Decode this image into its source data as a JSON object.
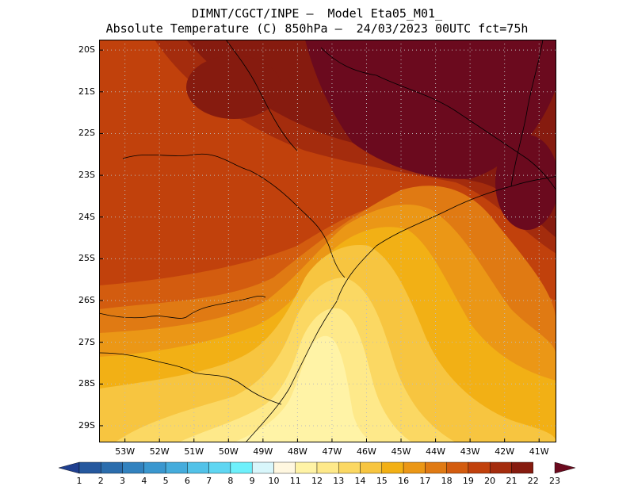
{
  "header": {
    "title_line1": "DIMNT/CGCT/INPE –  Model Eta05_M01_",
    "title_line2": "Absolute Temperature (C) 850hPa –  24/03/2023 00UTC fct=75h"
  },
  "map": {
    "lon_range": [
      -53.75,
      -40.5
    ],
    "lat_range": [
      -29.4,
      -19.75
    ],
    "lat_ticks": [
      "20S",
      "21S",
      "22S",
      "23S",
      "24S",
      "25S",
      "26S",
      "27S",
      "28S",
      "29S"
    ],
    "lat_values": [
      -20,
      -21,
      -22,
      -23,
      -24,
      -25,
      -26,
      -27,
      -28,
      -29
    ],
    "lon_ticks": [
      "53W",
      "52W",
      "51W",
      "50W",
      "49W",
      "48W",
      "47W",
      "46W",
      "45W",
      "44W",
      "43W",
      "42W",
      "41W"
    ],
    "lon_values": [
      -53,
      -52,
      -51,
      -50,
      -49,
      -48,
      -47,
      -46,
      -45,
      -44,
      -43,
      -42,
      -41
    ],
    "grid": true,
    "grid_style": "dotted"
  },
  "colorbar": {
    "labels": [
      "1",
      "2",
      "3",
      "4",
      "5",
      "6",
      "7",
      "8",
      "9",
      "10",
      "11",
      "12",
      "13",
      "14",
      "15",
      "16",
      "17",
      "18",
      "19",
      "20",
      "21",
      "22",
      "23"
    ],
    "colors": [
      "#1f3f8f",
      "#25589e",
      "#2b6dad",
      "#3282bf",
      "#3a97cf",
      "#45acdc",
      "#52c2e8",
      "#5fd6f2",
      "#6ef0fb",
      "#d8f6fb",
      "#fff7e0",
      "#fff3a6",
      "#fee98a",
      "#fbd863",
      "#f7c540",
      "#f2b015",
      "#eb9716",
      "#e07a13",
      "#d35c0f",
      "#c1410c",
      "#a42c0d",
      "#861b0f",
      "#6b0a1e"
    ]
  }
}
